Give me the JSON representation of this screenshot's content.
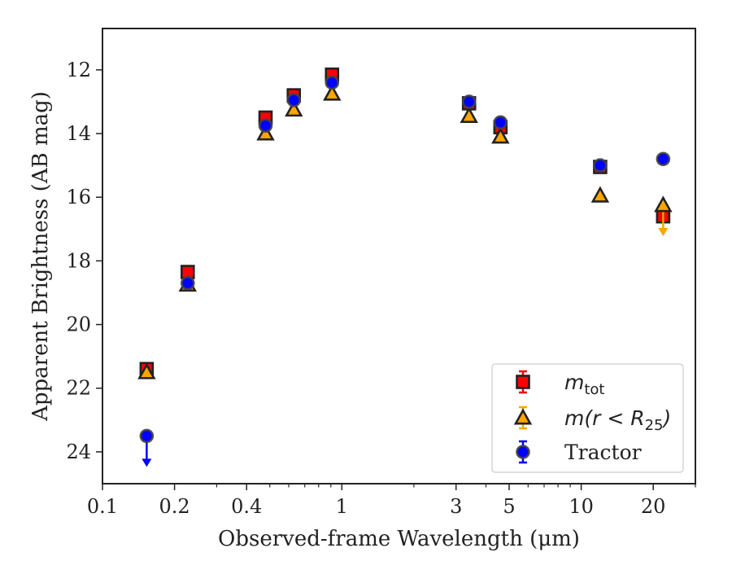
{
  "chart_data": {
    "type": "scatter",
    "title": "",
    "xlabel": "Observed-frame Wavelength (μm)",
    "ylabel": "Apparent Brightness (AB mag)",
    "xscale": "log",
    "xlim": [
      0.1,
      30
    ],
    "ylim": [
      25,
      10.7
    ],
    "y_inverted": true,
    "grid": false,
    "legend_position": "lower-right",
    "x_ticks": [
      0.1,
      0.2,
      0.4,
      1,
      3,
      5,
      10,
      20
    ],
    "x_tick_labels": [
      "0.1",
      "0.2",
      "0.4",
      "1",
      "3",
      "5",
      "10",
      "20"
    ],
    "y_ticks": [
      12,
      14,
      16,
      18,
      20,
      22,
      24
    ],
    "y_tick_labels": [
      "12",
      "14",
      "16",
      "18",
      "20",
      "22",
      "24"
    ],
    "series": [
      {
        "name": "m_tot",
        "legend_label": "m",
        "legend_sub": "tot",
        "marker": "square",
        "color": "#ff0000",
        "edge": "#222222",
        "points": [
          {
            "x": 0.153,
            "y": 21.4
          },
          {
            "x": 0.227,
            "y": 18.35
          },
          {
            "x": 0.48,
            "y": 13.5
          },
          {
            "x": 0.63,
            "y": 12.8
          },
          {
            "x": 0.91,
            "y": 12.15
          },
          {
            "x": 3.4,
            "y": 13.05
          },
          {
            "x": 4.6,
            "y": 13.8
          },
          {
            "x": 12.0,
            "y": 15.05
          },
          {
            "x": 22.0,
            "y": 16.6
          }
        ]
      },
      {
        "name": "m(r < R25)",
        "legend_label": "m(r < R",
        "legend_sub": "25",
        "legend_close": ")",
        "marker": "triangle",
        "color": "#ffa500",
        "edge": "#222222",
        "points": [
          {
            "x": 0.153,
            "y": 21.5
          },
          {
            "x": 0.227,
            "y": 18.75
          },
          {
            "x": 0.48,
            "y": 14.0
          },
          {
            "x": 0.63,
            "y": 13.25
          },
          {
            "x": 0.91,
            "y": 12.75
          },
          {
            "x": 3.4,
            "y": 13.45
          },
          {
            "x": 4.6,
            "y": 14.1
          },
          {
            "x": 12.0,
            "y": 15.95
          },
          {
            "x": 22.0,
            "y": 16.25,
            "upper_limit": true
          }
        ]
      },
      {
        "name": "Tractor",
        "legend_label": "Tractor",
        "marker": "circle",
        "color": "#0000ff",
        "edge": "#444444",
        "points": [
          {
            "x": 0.153,
            "y": 23.5,
            "upper_limit": true
          },
          {
            "x": 0.227,
            "y": 18.7
          },
          {
            "x": 0.48,
            "y": 13.75
          },
          {
            "x": 0.63,
            "y": 12.95
          },
          {
            "x": 0.91,
            "y": 12.4
          },
          {
            "x": 3.4,
            "y": 13.0
          },
          {
            "x": 4.6,
            "y": 13.65
          },
          {
            "x": 12.0,
            "y": 15.0
          },
          {
            "x": 22.0,
            "y": 14.8
          }
        ]
      }
    ]
  }
}
